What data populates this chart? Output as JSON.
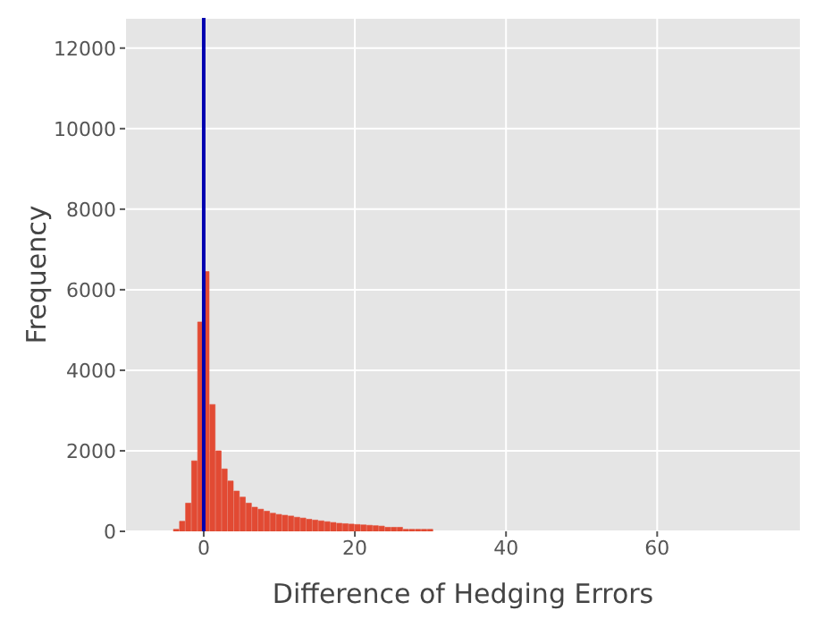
{
  "chart_data": {
    "type": "histogram",
    "xlabel": "Difference of Hedging Errors",
    "ylabel": "Frequency",
    "bins": [
      -6.4,
      -5.6,
      -4.8,
      -4.0,
      -3.2,
      -2.4,
      -1.6,
      -0.8,
      0,
      0.8,
      1.6,
      2.4,
      3.2,
      4.0,
      4.8,
      5.6,
      6.4,
      7.2,
      8.0,
      8.8,
      9.6,
      10.4,
      11.2,
      12.0,
      12.8,
      13.6,
      14.4,
      15.2,
      16.0,
      16.8,
      17.6,
      18.4,
      19.2,
      20.0,
      20.8,
      21.6,
      22.4,
      23.2,
      24.0,
      24.8,
      25.6,
      26.4,
      27.2,
      28.0,
      28.8,
      29.6,
      30.4,
      31.2,
      32.0,
      32.8,
      33.6,
      34.4,
      35.2,
      36.0,
      36.8,
      37.6,
      38.4,
      39.2,
      40.0,
      40.8,
      41.6,
      42.4,
      43.2,
      44.0,
      44.8,
      45.6,
      46.4,
      47.2,
      48.0,
      48.8,
      49.6,
      50.4,
      51.2,
      52.0,
      52.8,
      53.6,
      54.4,
      55.2,
      56.0,
      56.8,
      57.6,
      58.4,
      59.2,
      60.0,
      60.8,
      61.6,
      62.4,
      63.2,
      64.0,
      64.8,
      65.6,
      66.4,
      67.2,
      68.0,
      68.8,
      69.6,
      70.4,
      71.2,
      72.0,
      72.8,
      73.6
    ],
    "values": [
      0,
      0,
      0,
      50,
      250,
      700,
      1750,
      5200,
      6450,
      3150,
      2000,
      1550,
      1250,
      1000,
      850,
      700,
      600,
      550,
      500,
      450,
      420,
      400,
      380,
      350,
      330,
      300,
      280,
      260,
      240,
      220,
      200,
      190,
      180,
      170,
      160,
      150,
      140,
      130,
      100,
      100,
      100,
      50,
      50,
      50,
      50,
      50,
      0,
      0,
      0,
      0,
      0,
      0,
      0,
      0,
      0,
      0,
      0,
      0,
      0,
      0,
      0,
      0,
      0,
      0,
      0,
      0,
      0,
      0,
      0,
      0,
      0,
      0,
      0,
      0,
      0,
      0,
      0,
      0,
      0,
      0,
      0,
      0,
      0,
      0,
      0,
      0,
      0,
      0,
      0,
      0,
      0,
      0,
      0,
      0,
      0,
      0,
      0,
      0,
      0,
      0
    ],
    "color": "#e24a33",
    "xlim": [
      -10.4,
      79
    ],
    "xticks": [
      0,
      20,
      40,
      60
    ],
    "ylim": [
      0,
      12750
    ],
    "yticks": [
      0,
      2000,
      4000,
      6000,
      8000,
      10000,
      12000
    ],
    "grid": true,
    "ref_lines": [
      {
        "axis": "x",
        "value": 0,
        "color": "#0000b0"
      }
    ]
  }
}
